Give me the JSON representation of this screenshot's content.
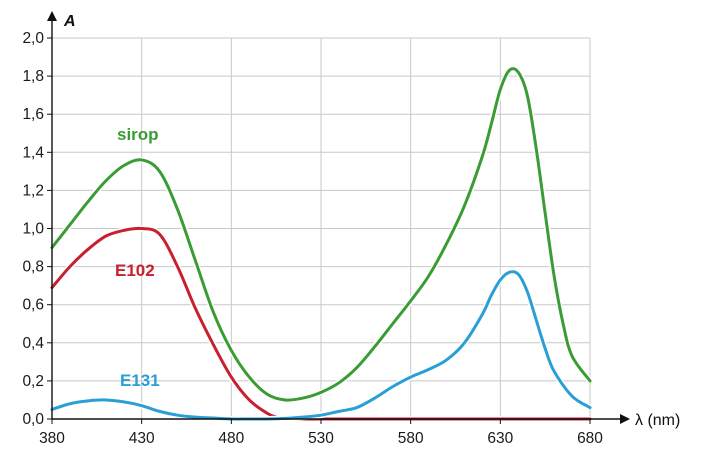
{
  "chart_data": {
    "type": "line",
    "xlabel": "λ (nm)",
    "ylabel": "A",
    "xlim": [
      380,
      680
    ],
    "ylim": [
      0,
      2.0
    ],
    "x_ticks": [
      380,
      430,
      480,
      530,
      580,
      630,
      680
    ],
    "y_ticks": [
      0.0,
      0.2,
      0.4,
      0.6,
      0.8,
      1.0,
      1.2,
      1.4,
      1.6,
      1.8,
      2.0
    ],
    "x_tick_labels": [
      "380",
      "430",
      "480",
      "530",
      "580",
      "630",
      "680"
    ],
    "y_tick_labels": [
      "0,0",
      "0,2",
      "0,4",
      "0,6",
      "0,8",
      "1,0",
      "1,2",
      "1,4",
      "1,6",
      "1,8",
      "2,0"
    ],
    "grid": true,
    "series": [
      {
        "name": "sirop",
        "color": "#3a9c35",
        "x": [
          380,
          390,
          400,
          410,
          420,
          430,
          440,
          450,
          460,
          470,
          480,
          490,
          500,
          510,
          520,
          530,
          540,
          550,
          560,
          570,
          580,
          590,
          600,
          610,
          620,
          625,
          630,
          635,
          640,
          645,
          650,
          655,
          660,
          665,
          670,
          680
        ],
        "y": [
          0.9,
          1.02,
          1.14,
          1.25,
          1.33,
          1.36,
          1.3,
          1.1,
          0.83,
          0.56,
          0.36,
          0.22,
          0.13,
          0.1,
          0.11,
          0.14,
          0.19,
          0.27,
          0.38,
          0.5,
          0.62,
          0.75,
          0.92,
          1.12,
          1.38,
          1.55,
          1.73,
          1.83,
          1.82,
          1.7,
          1.42,
          1.08,
          0.75,
          0.5,
          0.33,
          0.2
        ]
      },
      {
        "name": "E102",
        "color": "#c8202e",
        "x": [
          380,
          390,
          400,
          410,
          420,
          430,
          440,
          450,
          460,
          470,
          480,
          490,
          500,
          505,
          510,
          520,
          580,
          630,
          680
        ],
        "y": [
          0.69,
          0.8,
          0.89,
          0.96,
          0.99,
          1.0,
          0.97,
          0.8,
          0.58,
          0.39,
          0.22,
          0.1,
          0.03,
          0.01,
          0.0,
          0.0,
          0.0,
          0.0,
          0.0
        ]
      },
      {
        "name": "E131",
        "color": "#2a9fd6",
        "x": [
          380,
          390,
          400,
          410,
          420,
          430,
          440,
          450,
          460,
          470,
          480,
          490,
          500,
          510,
          520,
          530,
          540,
          550,
          560,
          570,
          580,
          590,
          600,
          610,
          620,
          625,
          630,
          635,
          640,
          645,
          650,
          655,
          660,
          670,
          680
        ],
        "y": [
          0.05,
          0.08,
          0.095,
          0.1,
          0.09,
          0.07,
          0.04,
          0.02,
          0.01,
          0.005,
          0.0,
          0.0,
          0.0,
          0.003,
          0.01,
          0.02,
          0.04,
          0.06,
          0.11,
          0.17,
          0.22,
          0.26,
          0.31,
          0.4,
          0.55,
          0.65,
          0.73,
          0.77,
          0.76,
          0.67,
          0.52,
          0.37,
          0.25,
          0.12,
          0.06
        ]
      }
    ]
  }
}
